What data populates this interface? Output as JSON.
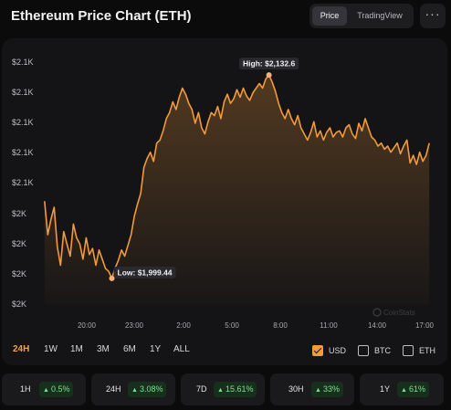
{
  "header": {
    "title": "Ethereum Price Chart (ETH)"
  },
  "view_toggle": [
    {
      "label": "Price",
      "active": true
    },
    {
      "label": "TradingView",
      "active": false
    }
  ],
  "more_menu": {
    "icon": "more-horizontal-icon",
    "label": "···"
  },
  "chart_data": {
    "type": "area",
    "title": "",
    "xlabel": "",
    "ylabel": "",
    "y_tick_labels": [
      "$2.1K",
      "$2.1K",
      "$2.1K",
      "$2.1K",
      "$2.1K",
      "$2K",
      "$2K",
      "$2K",
      "$2K"
    ],
    "x_tick_labels": [
      "20:00",
      "23:00",
      "2:00",
      "5:00",
      "8:00",
      "11:00",
      "14:00",
      "17:00"
    ],
    "x_range_hours": [
      17.3,
      41.5
    ],
    "ylim": [
      1982,
      2150
    ],
    "grid": false,
    "line_color": "#f39a3a",
    "series": [
      {
        "points": [
          [
            17.4,
            2050
          ],
          [
            17.6,
            2028
          ],
          [
            17.8,
            2038
          ],
          [
            18.0,
            2046
          ],
          [
            18.2,
            2020
          ],
          [
            18.4,
            2008
          ],
          [
            18.6,
            2030
          ],
          [
            18.8,
            2022
          ],
          [
            19.0,
            2014
          ],
          [
            19.2,
            2035
          ],
          [
            19.4,
            2026
          ],
          [
            19.6,
            2022
          ],
          [
            19.8,
            2012
          ],
          [
            20.0,
            2026
          ],
          [
            20.2,
            2015
          ],
          [
            20.4,
            2019
          ],
          [
            20.6,
            2008
          ],
          [
            20.8,
            2018
          ],
          [
            21.0,
            2012
          ],
          [
            21.2,
            2006
          ],
          [
            21.4,
            2004
          ],
          [
            21.6,
            1999.44
          ],
          [
            21.8,
            2006
          ],
          [
            22.0,
            2011
          ],
          [
            22.2,
            2018
          ],
          [
            22.4,
            2014
          ],
          [
            22.6,
            2021
          ],
          [
            22.8,
            2028
          ],
          [
            23.0,
            2040
          ],
          [
            23.2,
            2048
          ],
          [
            23.4,
            2055
          ],
          [
            23.6,
            2072
          ],
          [
            23.8,
            2078
          ],
          [
            24.0,
            2082
          ],
          [
            24.2,
            2076
          ],
          [
            24.4,
            2088
          ],
          [
            24.6,
            2090
          ],
          [
            24.8,
            2096
          ],
          [
            25.0,
            2104
          ],
          [
            25.2,
            2108
          ],
          [
            25.4,
            2115
          ],
          [
            25.6,
            2110
          ],
          [
            25.8,
            2118
          ],
          [
            26.0,
            2124
          ],
          [
            26.2,
            2120
          ],
          [
            26.4,
            2114
          ],
          [
            26.6,
            2110
          ],
          [
            26.8,
            2101
          ],
          [
            27.0,
            2108
          ],
          [
            27.2,
            2098
          ],
          [
            27.4,
            2094
          ],
          [
            27.6,
            2102
          ],
          [
            27.8,
            2108
          ],
          [
            28.0,
            2106
          ],
          [
            28.2,
            2112
          ],
          [
            28.4,
            2104
          ],
          [
            28.6,
            2115
          ],
          [
            28.8,
            2120
          ],
          [
            29.0,
            2114
          ],
          [
            29.2,
            2117
          ],
          [
            29.4,
            2123
          ],
          [
            29.6,
            2118
          ],
          [
            29.8,
            2124
          ],
          [
            30.0,
            2119
          ],
          [
            30.2,
            2116
          ],
          [
            30.4,
            2121
          ],
          [
            30.6,
            2124
          ],
          [
            30.8,
            2127
          ],
          [
            31.0,
            2124
          ],
          [
            31.2,
            2130
          ],
          [
            31.4,
            2132.6
          ],
          [
            31.6,
            2128
          ],
          [
            31.8,
            2122
          ],
          [
            32.0,
            2114
          ],
          [
            32.2,
            2108
          ],
          [
            32.4,
            2104
          ],
          [
            32.6,
            2110
          ],
          [
            32.8,
            2104
          ],
          [
            33.0,
            2100
          ],
          [
            33.2,
            2106
          ],
          [
            33.4,
            2098
          ],
          [
            33.6,
            2094
          ],
          [
            33.8,
            2090
          ],
          [
            34.0,
            2095
          ],
          [
            34.2,
            2102
          ],
          [
            34.4,
            2092
          ],
          [
            34.6,
            2096
          ],
          [
            34.8,
            2090
          ],
          [
            35.0,
            2095
          ],
          [
            35.2,
            2098
          ],
          [
            35.4,
            2092
          ],
          [
            35.6,
            2095
          ],
          [
            35.8,
            2096
          ],
          [
            36.0,
            2092
          ],
          [
            36.2,
            2098
          ],
          [
            36.4,
            2100
          ],
          [
            36.6,
            2094
          ],
          [
            36.8,
            2091
          ],
          [
            37.0,
            2101
          ],
          [
            37.2,
            2096
          ],
          [
            37.4,
            2104
          ],
          [
            37.6,
            2098
          ],
          [
            37.8,
            2092
          ],
          [
            38.0,
            2090
          ],
          [
            38.2,
            2086
          ],
          [
            38.4,
            2088
          ],
          [
            38.6,
            2084
          ],
          [
            38.8,
            2086
          ],
          [
            39.0,
            2082
          ],
          [
            39.2,
            2085
          ],
          [
            39.4,
            2088
          ],
          [
            39.6,
            2081
          ],
          [
            39.8,
            2086
          ],
          [
            40.0,
            2090
          ],
          [
            40.2,
            2075
          ],
          [
            40.4,
            2080
          ],
          [
            40.6,
            2074
          ],
          [
            40.8,
            2082
          ],
          [
            41.0,
            2076
          ],
          [
            41.2,
            2080
          ],
          [
            41.4,
            2088
          ]
        ]
      }
    ],
    "annotations": {
      "high": {
        "label": "High: $2,132.6",
        "value": 2132.6
      },
      "low": {
        "label": "Low: $1,999.44",
        "value": 1999.44
      }
    },
    "watermark": "CoinStats"
  },
  "time_ranges": [
    {
      "label": "24H",
      "active": true
    },
    {
      "label": "1W",
      "active": false
    },
    {
      "label": "1M",
      "active": false
    },
    {
      "label": "3M",
      "active": false
    },
    {
      "label": "6M",
      "active": false
    },
    {
      "label": "1Y",
      "active": false
    },
    {
      "label": "ALL",
      "active": false
    }
  ],
  "currency_options": [
    {
      "label": "USD",
      "checked": true
    },
    {
      "label": "BTC",
      "checked": false
    },
    {
      "label": "ETH",
      "checked": false
    }
  ],
  "performance": [
    {
      "period": "1H",
      "change": "0.5%"
    },
    {
      "period": "24H",
      "change": "3.08%"
    },
    {
      "period": "7D",
      "change": "15.61%"
    },
    {
      "period": "30H",
      "change": "33%"
    },
    {
      "period": "1Y",
      "change": "61%"
    }
  ],
  "colors": {
    "accent": "#f39a3a",
    "positive": "#7ee08a",
    "background": "#0b0b0c",
    "card": "#141416"
  }
}
